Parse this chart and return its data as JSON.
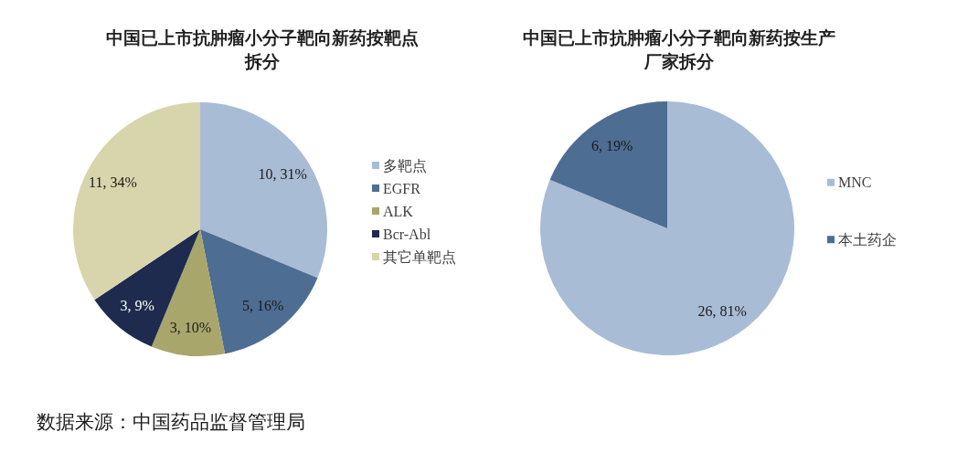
{
  "chart_data": [
    {
      "type": "pie",
      "title": "中国已上市抗肿瘤小分子靶向新药按靶点拆分",
      "categories": [
        "多靶点",
        "EGFR",
        "ALK",
        "Bcr-Abl",
        "其它单靶点"
      ],
      "values": [
        10,
        5,
        3,
        3,
        11
      ],
      "colors": [
        "#a9bcd5",
        "#4d6d93",
        "#a8a66b",
        "#1e2b4e",
        "#d8d5ac"
      ],
      "value_labels": [
        "10, 31%",
        "5, 16%",
        "3, 10%",
        "3, 9%",
        "11, 34%"
      ],
      "legend": "right",
      "annotations": [
        "数据来源：中国药品监督管理局"
      ]
    },
    {
      "type": "pie",
      "title": "中国已上市抗肿瘤小分子靶向新药按生产厂家拆分",
      "categories": [
        "MNC",
        "本土药企"
      ],
      "values": [
        26,
        6
      ],
      "colors": [
        "#a9bcd5",
        "#4d6d93"
      ],
      "value_labels": [
        "26, 81%",
        "6, 19%"
      ],
      "legend": "right"
    }
  ]
}
